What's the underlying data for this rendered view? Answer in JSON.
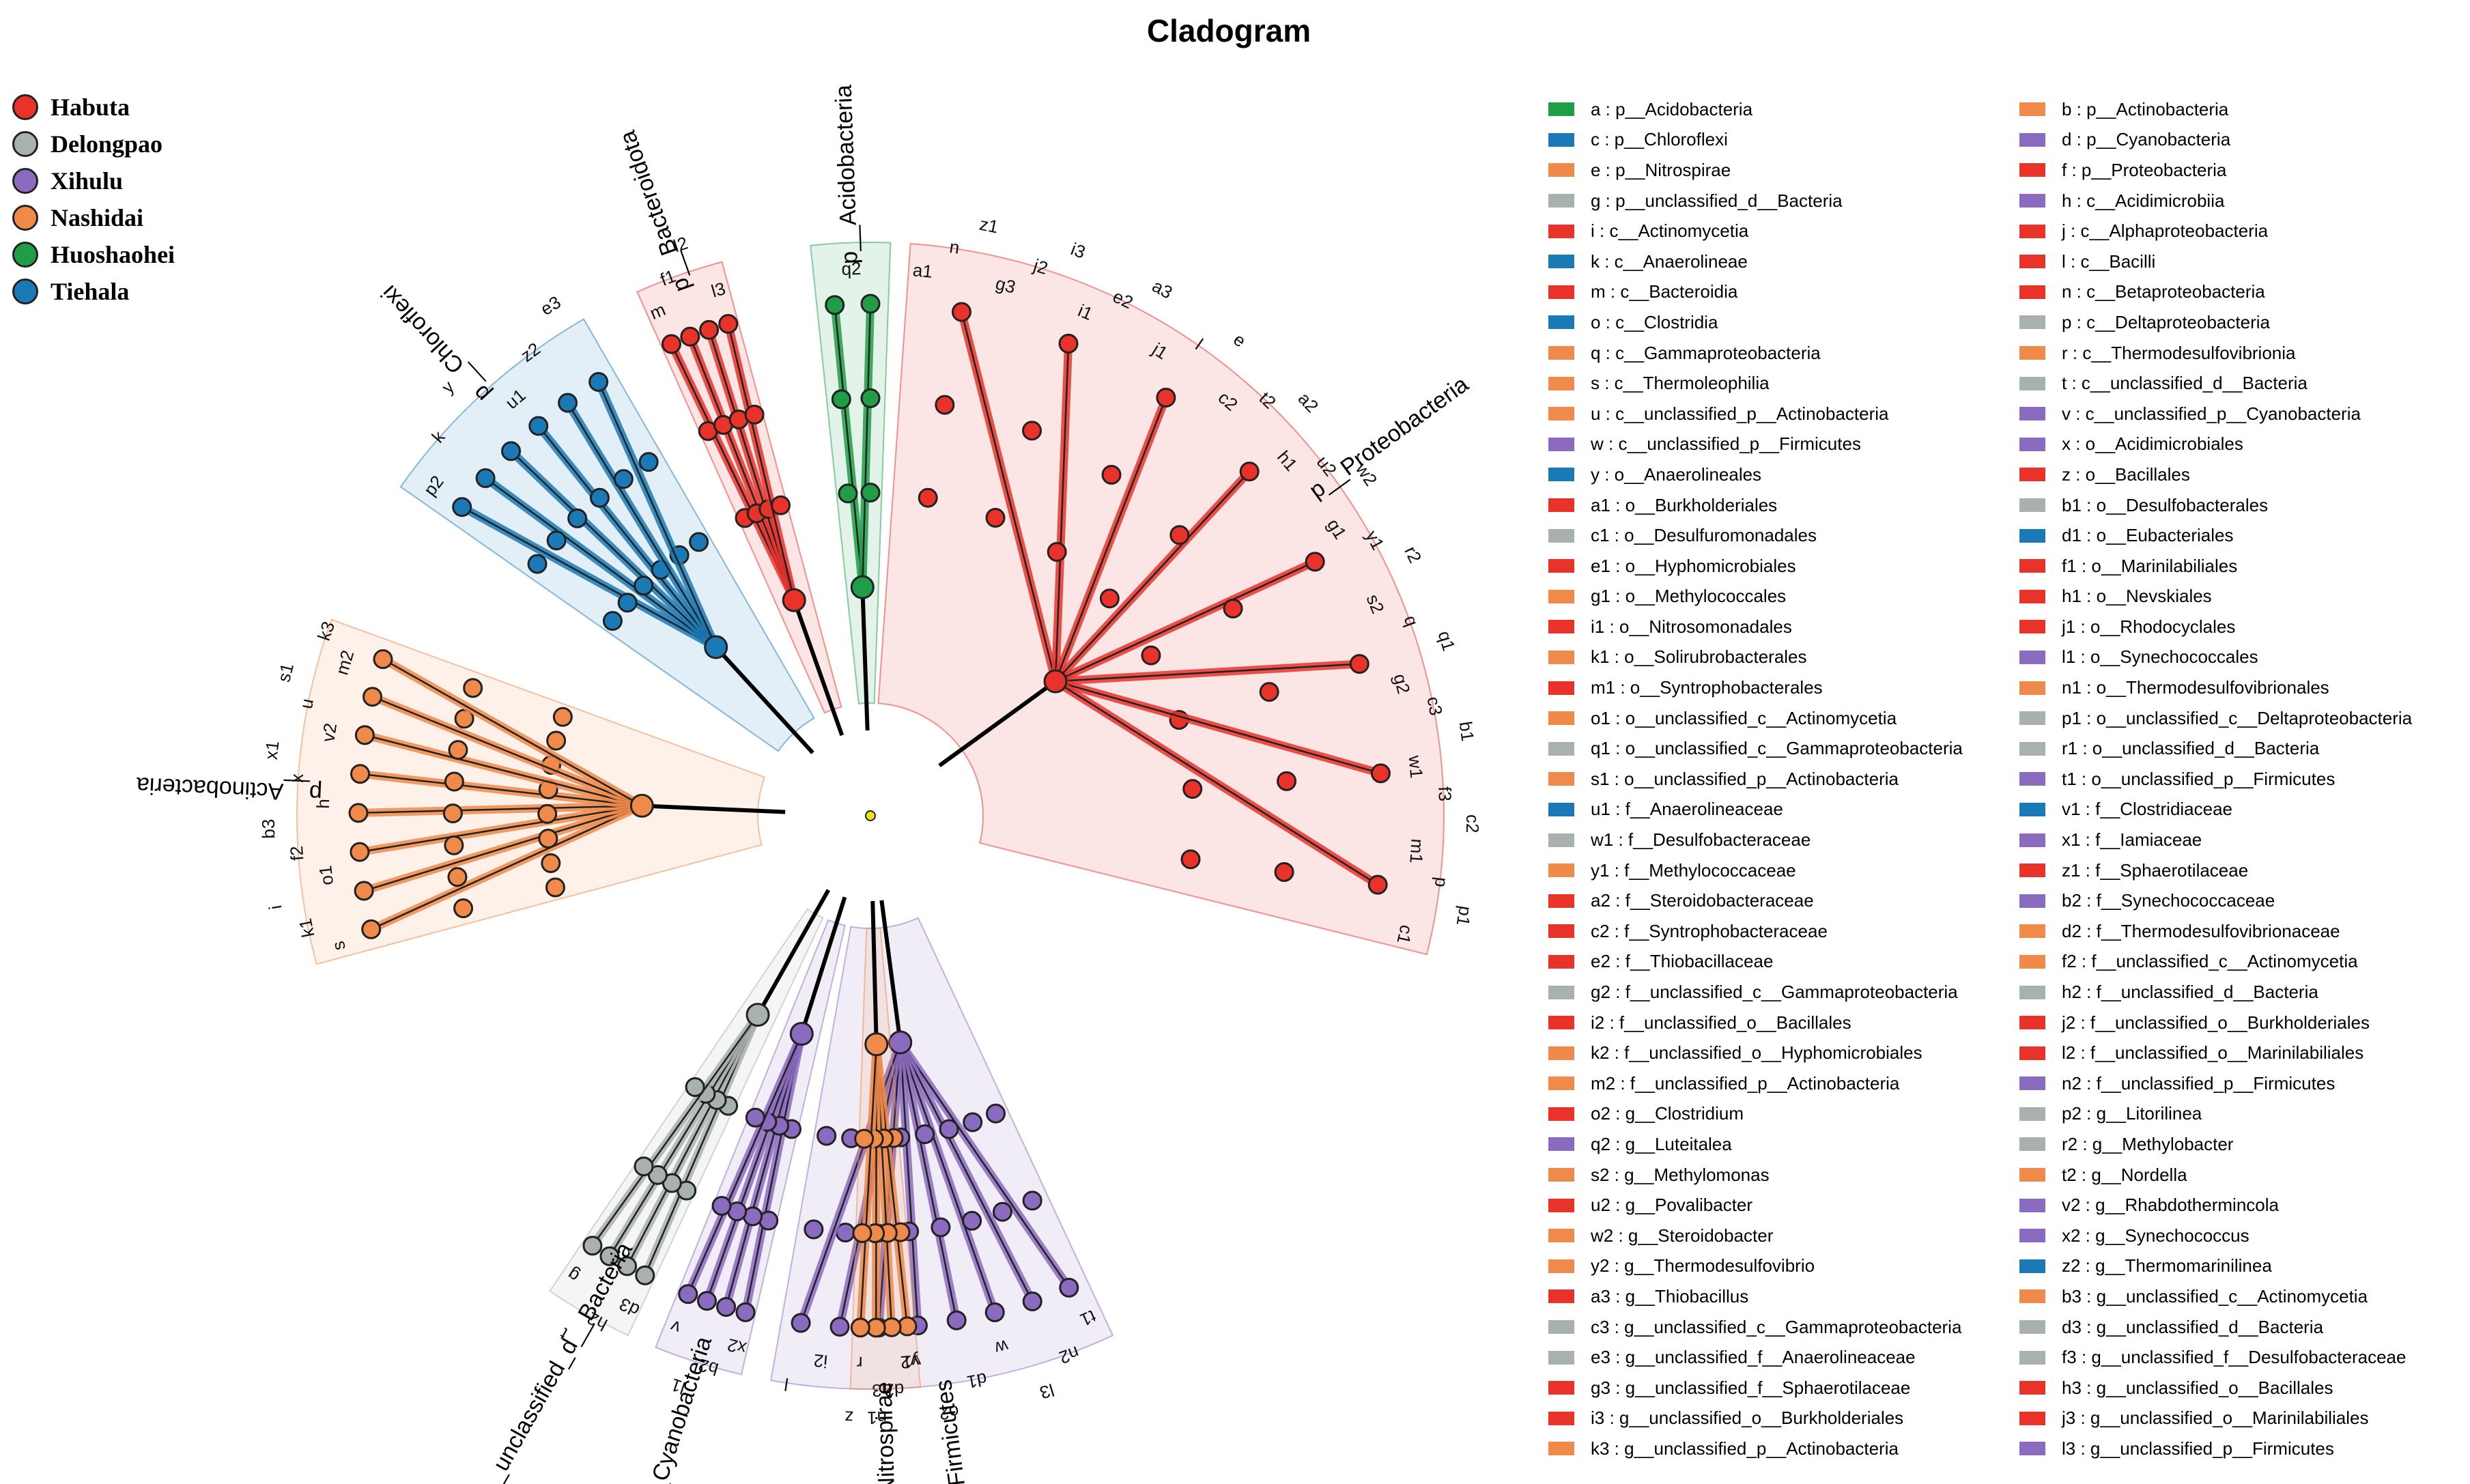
{
  "title": "Cladogram",
  "colors": {
    "Habuta": "#e8322a",
    "Delongpao": "#a9b0b0",
    "Xihulu": "#8b6bbf",
    "Nashidai": "#f08a4a",
    "Huoshaohei": "#1f9d47",
    "Tiehala": "#1b7ab5",
    "Node": "#f0e020"
  },
  "groups": [
    {
      "name": "Habuta",
      "color": "#e8322a"
    },
    {
      "name": "Delongpao",
      "color": "#a9b0b0"
    },
    {
      "name": "Xihulu",
      "color": "#8b6bbf"
    },
    {
      "name": "Nashidai",
      "color": "#f08a4a"
    },
    {
      "name": "Huoshaohei",
      "color": "#1f9d47"
    },
    {
      "name": "Tiehala",
      "color": "#1b7ab5"
    }
  ],
  "clades": [
    {
      "label": "p__Acidobacteria",
      "group": "Huoshaohei",
      "markers": [
        "q2"
      ]
    },
    {
      "label": "p__Bacteroidota",
      "group": "Habuta",
      "markers": [
        "m",
        "f1",
        "l2",
        "l3"
      ]
    },
    {
      "label": "p__Chloroflexi",
      "group": "Tiehala",
      "markers": [
        "p2",
        "k",
        "y",
        "u1",
        "z2",
        "e3"
      ]
    },
    {
      "label": "p__Proteobacteria",
      "group": "Habuta",
      "markers": [
        "a1",
        "n",
        "z1",
        "g3",
        "j2",
        "i3",
        "i1",
        "e2",
        "a3",
        "j1",
        "l",
        "e",
        "c2",
        "t2",
        "a2",
        "h1",
        "u2",
        "w2",
        "g1",
        "y1",
        "r2",
        "s2",
        "q",
        "q1",
        "g2",
        "c3",
        "b1",
        "w1",
        "f3",
        "c2",
        "m1",
        "p",
        "p1",
        "c1"
      ]
    },
    {
      "label": "p__Actinobacteria",
      "group": "Nashidai",
      "markers": [
        "s",
        "k1",
        "i",
        "o1",
        "f2",
        "b3",
        "h",
        "x",
        "x1",
        "v2",
        "u",
        "s1",
        "m2",
        "k3"
      ]
    },
    {
      "label": "p__Firmicutes",
      "group": "Xihulu",
      "markers": [
        "t1",
        "n2",
        "l3",
        "w",
        "d1",
        "o2",
        "v1",
        "h3",
        "z",
        "i2",
        "l"
      ]
    },
    {
      "label": "p__Nitrospirae",
      "group": "Nashidai",
      "markers": [
        "y2",
        "d2",
        "n1",
        "r"
      ]
    },
    {
      "label": "p__Cyanobacteria",
      "group": "Xihulu",
      "markers": [
        "x2",
        "b2",
        "l1",
        "v"
      ]
    },
    {
      "label": "d__unclassified_d__Bacteria",
      "group": "Delongpao",
      "markers": [
        "d3",
        "h2",
        "t",
        "g"
      ]
    }
  ],
  "taxa": [
    {
      "label": "a : p__Acidobacteria",
      "group": "Huoshaohei"
    },
    {
      "label": "b : p__Actinobacteria",
      "group": "Nashidai"
    },
    {
      "label": "c : p__Chloroflexi",
      "group": "Tiehala"
    },
    {
      "label": "d : p__Cyanobacteria",
      "group": "Xihulu"
    },
    {
      "label": "e : p__Nitrospirae",
      "group": "Nashidai"
    },
    {
      "label": "f : p__Proteobacteria",
      "group": "Habuta"
    },
    {
      "label": "g : p__unclassified_d__Bacteria",
      "group": "Delongpao"
    },
    {
      "label": "h : c__Acidimicrobiia",
      "group": "Xihulu"
    },
    {
      "label": "i : c__Actinomycetia",
      "group": "Habuta"
    },
    {
      "label": "j : c__Alphaproteobacteria",
      "group": "Habuta"
    },
    {
      "label": "k : c__Anaerolineae",
      "group": "Tiehala"
    },
    {
      "label": "l : c__Bacilli",
      "group": "Habuta"
    },
    {
      "label": "m : c__Bacteroidia",
      "group": "Habuta"
    },
    {
      "label": "n : c__Betaproteobacteria",
      "group": "Habuta"
    },
    {
      "label": "o : c__Clostridia",
      "group": "Tiehala"
    },
    {
      "label": "p : c__Deltaproteobacteria",
      "group": "Delongpao"
    },
    {
      "label": "q : c__Gammaproteobacteria",
      "group": "Nashidai"
    },
    {
      "label": "r : c__Thermodesulfovibrionia",
      "group": "Nashidai"
    },
    {
      "label": "s : c__Thermoleophilia",
      "group": "Nashidai"
    },
    {
      "label": "t : c__unclassified_d__Bacteria",
      "group": "Delongpao"
    },
    {
      "label": "u : c__unclassified_p__Actinobacteria",
      "group": "Nashidai"
    },
    {
      "label": "v : c__unclassified_p__Cyanobacteria",
      "group": "Xihulu"
    },
    {
      "label": "w : c__unclassified_p__Firmicutes",
      "group": "Xihulu"
    },
    {
      "label": "x : o__Acidimicrobiales",
      "group": "Xihulu"
    },
    {
      "label": "y : o__Anaerolineales",
      "group": "Tiehala"
    },
    {
      "label": "z : o__Bacillales",
      "group": "Habuta"
    },
    {
      "label": "a1 : o__Burkholderiales",
      "group": "Habuta"
    },
    {
      "label": "b1 : o__Desulfobacterales",
      "group": "Delongpao"
    },
    {
      "label": "c1 : o__Desulfuromonadales",
      "group": "Delongpao"
    },
    {
      "label": "d1 : o__Eubacteriales",
      "group": "Tiehala"
    },
    {
      "label": "e1 : o__Hyphomicrobiales",
      "group": "Habuta"
    },
    {
      "label": "f1 : o__Marinilabiliales",
      "group": "Habuta"
    },
    {
      "label": "g1 : o__Methylococcales",
      "group": "Nashidai"
    },
    {
      "label": "h1 : o__Nevskiales",
      "group": "Habuta"
    },
    {
      "label": "i1 : o__Nitrosomonadales",
      "group": "Habuta"
    },
    {
      "label": "j1 : o__Rhodocyclales",
      "group": "Habuta"
    },
    {
      "label": "k1 : o__Solirubrobacterales",
      "group": "Nashidai"
    },
    {
      "label": "l1 : o__Synechococcales",
      "group": "Xihulu"
    },
    {
      "label": "m1 : o__Syntrophobacterales",
      "group": "Habuta"
    },
    {
      "label": "n1 : o__Thermodesulfovibrionales",
      "group": "Nashidai"
    },
    {
      "label": "o1 : o__unclassified_c__Actinomycetia",
      "group": "Nashidai"
    },
    {
      "label": "p1 : o__unclassified_c__Deltaproteobacteria",
      "group": "Delongpao"
    },
    {
      "label": "q1 : o__unclassified_c__Gammaproteobacteria",
      "group": "Delongpao"
    },
    {
      "label": "r1 : o__unclassified_d__Bacteria",
      "group": "Delongpao"
    },
    {
      "label": "s1 : o__unclassified_p__Actinobacteria",
      "group": "Nashidai"
    },
    {
      "label": "t1 : o__unclassified_p__Firmicutes",
      "group": "Xihulu"
    },
    {
      "label": "u1 : f__Anaerolineaceae",
      "group": "Tiehala"
    },
    {
      "label": "v1 : f__Clostridiaceae",
      "group": "Tiehala"
    },
    {
      "label": "w1 : f__Desulfobacteraceae",
      "group": "Delongpao"
    },
    {
      "label": "x1 : f__Iamiaceae",
      "group": "Xihulu"
    },
    {
      "label": "y1 : f__Methylococcaceae",
      "group": "Nashidai"
    },
    {
      "label": "z1 : f__Sphaerotilaceae",
      "group": "Habuta"
    },
    {
      "label": "a2 : f__Steroidobacteraceae",
      "group": "Habuta"
    },
    {
      "label": "b2 : f__Synechococcaceae",
      "group": "Xihulu"
    },
    {
      "label": "c2 : f__Syntrophobacteraceae",
      "group": "Habuta"
    },
    {
      "label": "d2 : f__Thermodesulfovibrionaceae",
      "group": "Nashidai"
    },
    {
      "label": "e2 : f__Thiobacillaceae",
      "group": "Habuta"
    },
    {
      "label": "f2 : f__unclassified_c__Actinomycetia",
      "group": "Nashidai"
    },
    {
      "label": "g2 : f__unclassified_c__Gammaproteobacteria",
      "group": "Delongpao"
    },
    {
      "label": "h2 : f__unclassified_d__Bacteria",
      "group": "Delongpao"
    },
    {
      "label": "i2 : f__unclassified_o__Bacillales",
      "group": "Habuta"
    },
    {
      "label": "j2 : f__unclassified_o__Burkholderiales",
      "group": "Habuta"
    },
    {
      "label": "k2 : f__unclassified_o__Hyphomicrobiales",
      "group": "Nashidai"
    },
    {
      "label": "l2 : f__unclassified_o__Marinilabiliales",
      "group": "Habuta"
    },
    {
      "label": "m2 : f__unclassified_p__Actinobacteria",
      "group": "Nashidai"
    },
    {
      "label": "n2 : f__unclassified_p__Firmicutes",
      "group": "Xihulu"
    },
    {
      "label": "o2 : g__Clostridium",
      "group": "Habuta"
    },
    {
      "label": "p2 : g__Litorilinea",
      "group": "Delongpao"
    },
    {
      "label": "q2 : g__Luteitalea",
      "group": "Xihulu"
    },
    {
      "label": "r2 : g__Methylobacter",
      "group": "Delongpao"
    },
    {
      "label": "s2 : g__Methylomonas",
      "group": "Nashidai"
    },
    {
      "label": "t2 : g__Nordella",
      "group": "Nashidai"
    },
    {
      "label": "u2 : g__Povalibacter",
      "group": "Habuta"
    },
    {
      "label": "v2 : g__Rhabdothermincola",
      "group": "Xihulu"
    },
    {
      "label": "w2 : g__Steroidobacter",
      "group": "Nashidai"
    },
    {
      "label": "x2 : g__Synechococcus",
      "group": "Xihulu"
    },
    {
      "label": "y2 : g__Thermodesulfovibrio",
      "group": "Nashidai"
    },
    {
      "label": "z2 : g__Thermomarinilinea",
      "group": "Tiehala"
    },
    {
      "label": "a3 : g__Thiobacillus",
      "group": "Habuta"
    },
    {
      "label": "b3 : g__unclassified_c__Actinomycetia",
      "group": "Nashidai"
    },
    {
      "label": "c3 : g__unclassified_c__Gammaproteobacteria",
      "group": "Delongpao"
    },
    {
      "label": "d3 : g__unclassified_d__Bacteria",
      "group": "Delongpao"
    },
    {
      "label": "e3 : g__unclassified_f__Anaerolineaceae",
      "group": "Delongpao"
    },
    {
      "label": "f3 : g__unclassified_f__Desulfobacteraceae",
      "group": "Delongpao"
    },
    {
      "label": "g3 : g__unclassified_f__Sphaerotilaceae",
      "group": "Habuta"
    },
    {
      "label": "h3 : g__unclassified_o__Bacillales",
      "group": "Habuta"
    },
    {
      "label": "i3 : g__unclassified_o__Burkholderiales",
      "group": "Habuta"
    },
    {
      "label": "j3 : g__unclassified_o__Marinilabiliales",
      "group": "Habuta"
    },
    {
      "label": "k3 : g__unclassified_p__Actinobacteria",
      "group": "Nashidai"
    },
    {
      "label": "l3 : g__unclassified_p__Firmicutes",
      "group": "Xihulu"
    }
  ]
}
